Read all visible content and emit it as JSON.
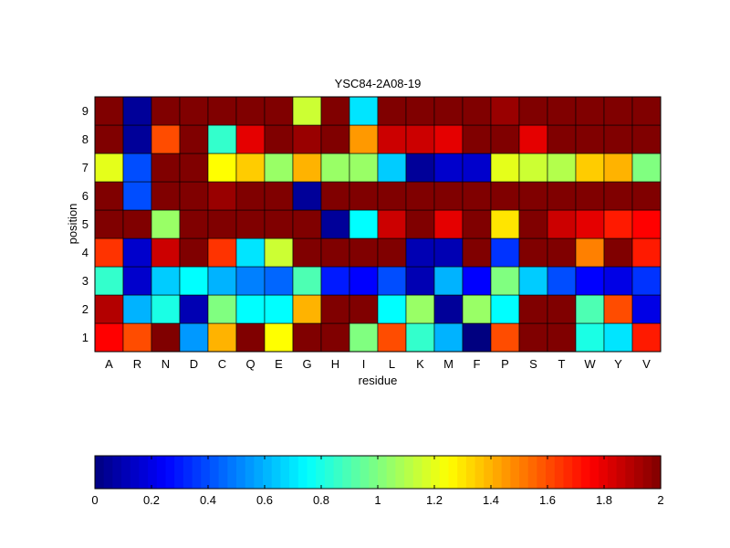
{
  "chart_data": {
    "type": "heatmap",
    "title": "YSC84-2A08-19",
    "xlabel": "residue",
    "ylabel": "position",
    "x_categories": [
      "A",
      "R",
      "N",
      "D",
      "C",
      "Q",
      "E",
      "G",
      "H",
      "I",
      "L",
      "K",
      "M",
      "F",
      "P",
      "S",
      "T",
      "W",
      "Y",
      "V"
    ],
    "y_categories": [
      "1",
      "2",
      "3",
      "4",
      "5",
      "6",
      "7",
      "8",
      "9"
    ],
    "values": [
      [
        1.75,
        1.6,
        2.0,
        0.55,
        1.4,
        2.0,
        1.25,
        2.0,
        2.0,
        1.0,
        1.6,
        0.85,
        0.6,
        0.0,
        1.6,
        2.0,
        2.0,
        0.8,
        0.7,
        1.7
      ],
      [
        1.9,
        0.6,
        0.8,
        0.1,
        1.0,
        0.75,
        0.75,
        1.4,
        2.0,
        2.0,
        0.75,
        1.05,
        0.05,
        1.05,
        0.75,
        2.0,
        2.0,
        0.9,
        1.6,
        0.2
      ],
      [
        0.85,
        0.15,
        0.65,
        0.75,
        0.6,
        0.5,
        0.45,
        0.9,
        0.3,
        0.25,
        0.4,
        0.1,
        0.6,
        0.25,
        1.0,
        0.65,
        0.4,
        0.25,
        0.2,
        0.35
      ],
      [
        1.65,
        0.15,
        1.85,
        2.0,
        1.65,
        0.7,
        1.15,
        2.0,
        2.0,
        2.0,
        2.0,
        0.1,
        0.1,
        2.0,
        0.35,
        2.0,
        2.0,
        1.5,
        2.0,
        1.7
      ],
      [
        2.0,
        2.0,
        1.05,
        2.0,
        2.0,
        2.0,
        2.0,
        2.0,
        0.05,
        0.75,
        1.85,
        2.0,
        1.8,
        2.0,
        1.3,
        2.0,
        1.85,
        1.8,
        1.7,
        1.75
      ],
      [
        2.0,
        0.4,
        2.0,
        2.0,
        1.95,
        2.0,
        2.0,
        0.05,
        2.0,
        2.0,
        2.0,
        2.0,
        2.0,
        2.0,
        2.0,
        2.0,
        2.0,
        2.0,
        2.0,
        2.0
      ],
      [
        1.2,
        0.4,
        2.0,
        2.0,
        1.25,
        1.35,
        1.05,
        1.4,
        1.05,
        1.05,
        0.65,
        0.05,
        0.15,
        0.15,
        1.2,
        1.15,
        1.1,
        1.35,
        1.4,
        1.0
      ],
      [
        2.0,
        0.05,
        1.6,
        2.0,
        0.85,
        1.8,
        2.0,
        1.95,
        2.0,
        1.45,
        1.85,
        1.85,
        1.8,
        2.0,
        2.0,
        1.8,
        2.0,
        2.0,
        2.0,
        2.0
      ],
      [
        2.0,
        0.05,
        2.0,
        2.0,
        2.0,
        2.0,
        2.0,
        1.15,
        2.0,
        0.7,
        2.0,
        2.0,
        2.0,
        2.0,
        1.95,
        2.0,
        2.0,
        2.0,
        2.0,
        2.0
      ]
    ],
    "colorbar": {
      "range": [
        0,
        2
      ],
      "ticks": [
        "0",
        "0.2",
        "0.4",
        "0.6",
        "0.8",
        "1",
        "1.2",
        "1.4",
        "1.6",
        "1.8",
        "2"
      ],
      "colormap": "jet",
      "placement": "bottom"
    },
    "grid": true
  }
}
